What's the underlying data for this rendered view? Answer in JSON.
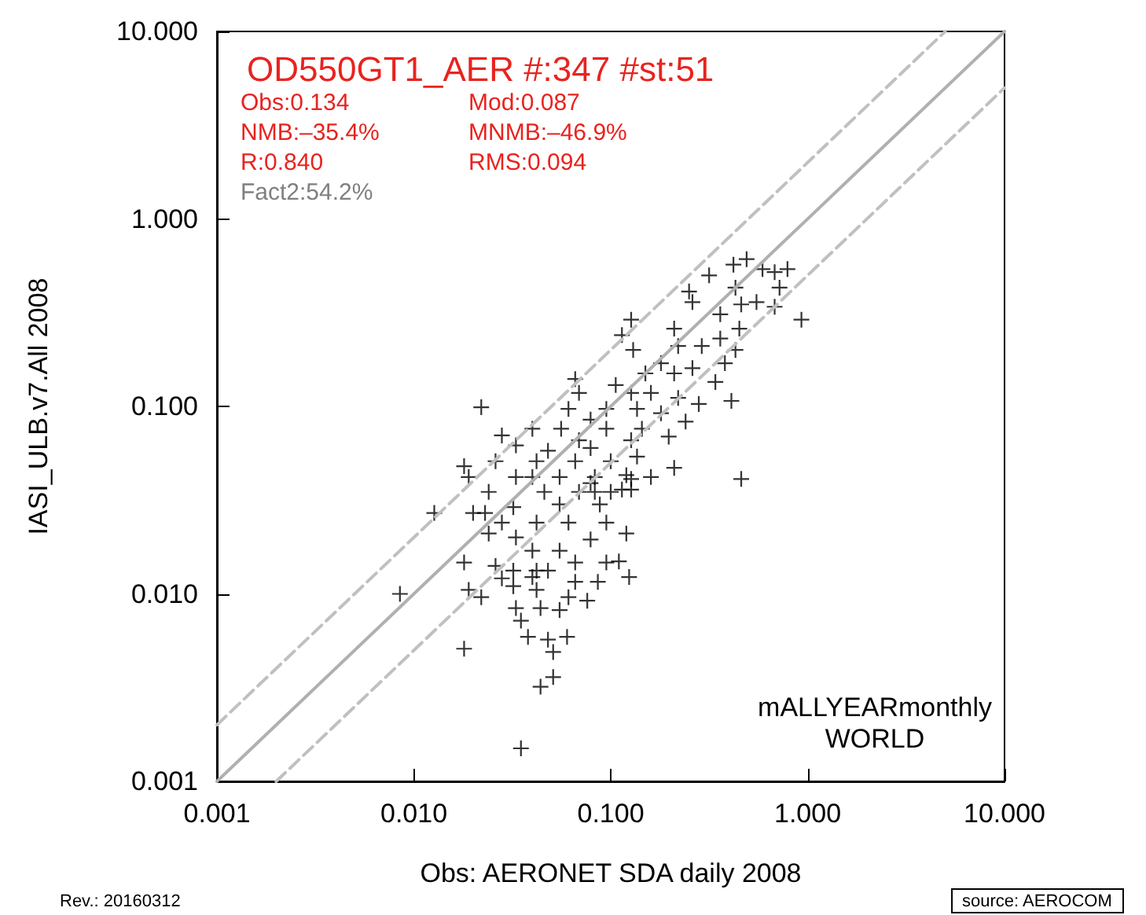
{
  "chart_data": {
    "type": "scatter",
    "title": "OD550GT1_AER #:347 #st:51",
    "xlabel": "Obs: AERONET SDA daily 2008",
    "ylabel": "IASI_ULB.v7.All 2008",
    "log": "xy",
    "grid": false,
    "xlim": [
      0.001,
      10
    ],
    "ylim": [
      0.001,
      10
    ],
    "xticks": [
      {
        "value": 0.001,
        "label": "0.001"
      },
      {
        "value": 0.01,
        "label": "0.010"
      },
      {
        "value": 0.1,
        "label": "0.100"
      },
      {
        "value": 1,
        "label": "1.000"
      },
      {
        "value": 10,
        "label": "10.000"
      }
    ],
    "yticks": [
      {
        "value": 0.001,
        "label": "0.001"
      },
      {
        "value": 0.01,
        "label": "0.010"
      },
      {
        "value": 0.1,
        "label": "0.100"
      },
      {
        "value": 1,
        "label": "1.000"
      },
      {
        "value": 10,
        "label": "10.000"
      }
    ],
    "annotations": [
      "Obs:0.134",
      "Mod:0.087",
      "NMB:–35.4%",
      "MNMB:–46.9%",
      "R:0.840",
      "RMS:0.094",
      "Fact2:54.2%",
      "mALLYEARmonthly\nWORLD",
      "Rev.: 20160312",
      "source: AEROCOM"
    ],
    "series": [
      {
        "type": "line",
        "color": "#b0b0b0",
        "line_style": "solid",
        "marker": "none",
        "x": [
          0.001,
          10
        ],
        "values": [
          0.001,
          10
        ]
      },
      {
        "type": "line",
        "color": "#c0c0c0",
        "line_style": "dashed",
        "marker": "none",
        "x": [
          0.001,
          5
        ],
        "values": [
          0.002,
          10
        ]
      },
      {
        "type": "line",
        "color": "#c0c0c0",
        "line_style": "dashed",
        "marker": "none",
        "x": [
          0.002,
          10
        ],
        "values": [
          0.001,
          5
        ]
      },
      {
        "color": "#000000",
        "marker": "cross",
        "x": [
          0.49,
          0.42,
          0.59,
          0.68,
          0.79,
          0.316,
          0.72,
          0.43,
          0.25,
          0.26,
          0.55,
          0.68,
          0.46,
          0.36,
          0.93,
          0.127,
          0.21,
          0.45,
          0.114,
          0.36,
          0.43,
          0.29,
          0.13,
          0.22,
          0.18,
          0.26,
          0.38,
          0.15,
          0.21,
          0.066,
          0.106,
          0.34,
          0.069,
          0.127,
          0.16,
          0.22,
          0.28,
          0.41,
          0.022,
          0.061,
          0.095,
          0.136,
          0.079,
          0.18,
          0.24,
          0.056,
          0.04,
          0.095,
          0.144,
          0.028,
          0.069,
          0.127,
          0.197,
          0.033,
          0.048,
          0.079,
          0.21,
          0.46,
          0.018,
          0.026,
          0.042,
          0.066,
          0.1,
          0.136,
          0.019,
          0.033,
          0.055,
          0.083,
          0.12,
          0.024,
          0.046,
          0.069,
          0.1,
          0.127,
          0.04,
          0.079,
          0.127,
          0.16,
          0.083,
          0.114,
          0.0127,
          0.02,
          0.023,
          0.032,
          0.055,
          0.088,
          0.028,
          0.042,
          0.061,
          0.095,
          0.024,
          0.033,
          0.04,
          0.055,
          0.079,
          0.12,
          0.018,
          0.026,
          0.032,
          0.042,
          0.066,
          0.095,
          0.11,
          0.028,
          0.04,
          0.048,
          0.066,
          0.086,
          0.124,
          0.0085,
          0.019,
          0.022,
          0.032,
          0.042,
          0.061,
          0.076,
          0.033,
          0.044,
          0.055,
          0.035,
          0.038,
          0.048,
          0.06,
          0.018,
          0.051,
          0.051,
          0.044,
          0.035
        ],
        "values": [
          0.61,
          0.57,
          0.54,
          0.52,
          0.54,
          0.5,
          0.43,
          0.43,
          0.41,
          0.36,
          0.36,
          0.34,
          0.35,
          0.31,
          0.29,
          0.29,
          0.26,
          0.26,
          0.24,
          0.23,
          0.2,
          0.21,
          0.2,
          0.21,
          0.17,
          0.16,
          0.17,
          0.15,
          0.15,
          0.14,
          0.13,
          0.135,
          0.118,
          0.118,
          0.118,
          0.111,
          0.103,
          0.107,
          0.099,
          0.097,
          0.097,
          0.097,
          0.085,
          0.092,
          0.083,
          0.076,
          0.076,
          0.076,
          0.076,
          0.07,
          0.066,
          0.066,
          0.069,
          0.062,
          0.058,
          0.06,
          0.047,
          0.041,
          0.048,
          0.051,
          0.051,
          0.051,
          0.051,
          0.054,
          0.042,
          0.042,
          0.042,
          0.042,
          0.043,
          0.035,
          0.035,
          0.035,
          0.035,
          0.036,
          0.042,
          0.039,
          0.041,
          0.042,
          0.035,
          0.036,
          0.027,
          0.027,
          0.027,
          0.029,
          0.03,
          0.03,
          0.024,
          0.024,
          0.024,
          0.024,
          0.021,
          0.02,
          0.017,
          0.017,
          0.0195,
          0.021,
          0.0147,
          0.0141,
          0.0133,
          0.0133,
          0.0147,
          0.0147,
          0.0149,
          0.0121,
          0.0123,
          0.0133,
          0.0116,
          0.0116,
          0.0123,
          0.01,
          0.0105,
          0.0096,
          0.011,
          0.0105,
          0.0096,
          0.0092,
          0.0084,
          0.0084,
          0.0082,
          0.0072,
          0.0059,
          0.0057,
          0.0059,
          0.0051,
          0.0049,
          0.0036,
          0.0032,
          0.0015
        ]
      }
    ]
  }
}
